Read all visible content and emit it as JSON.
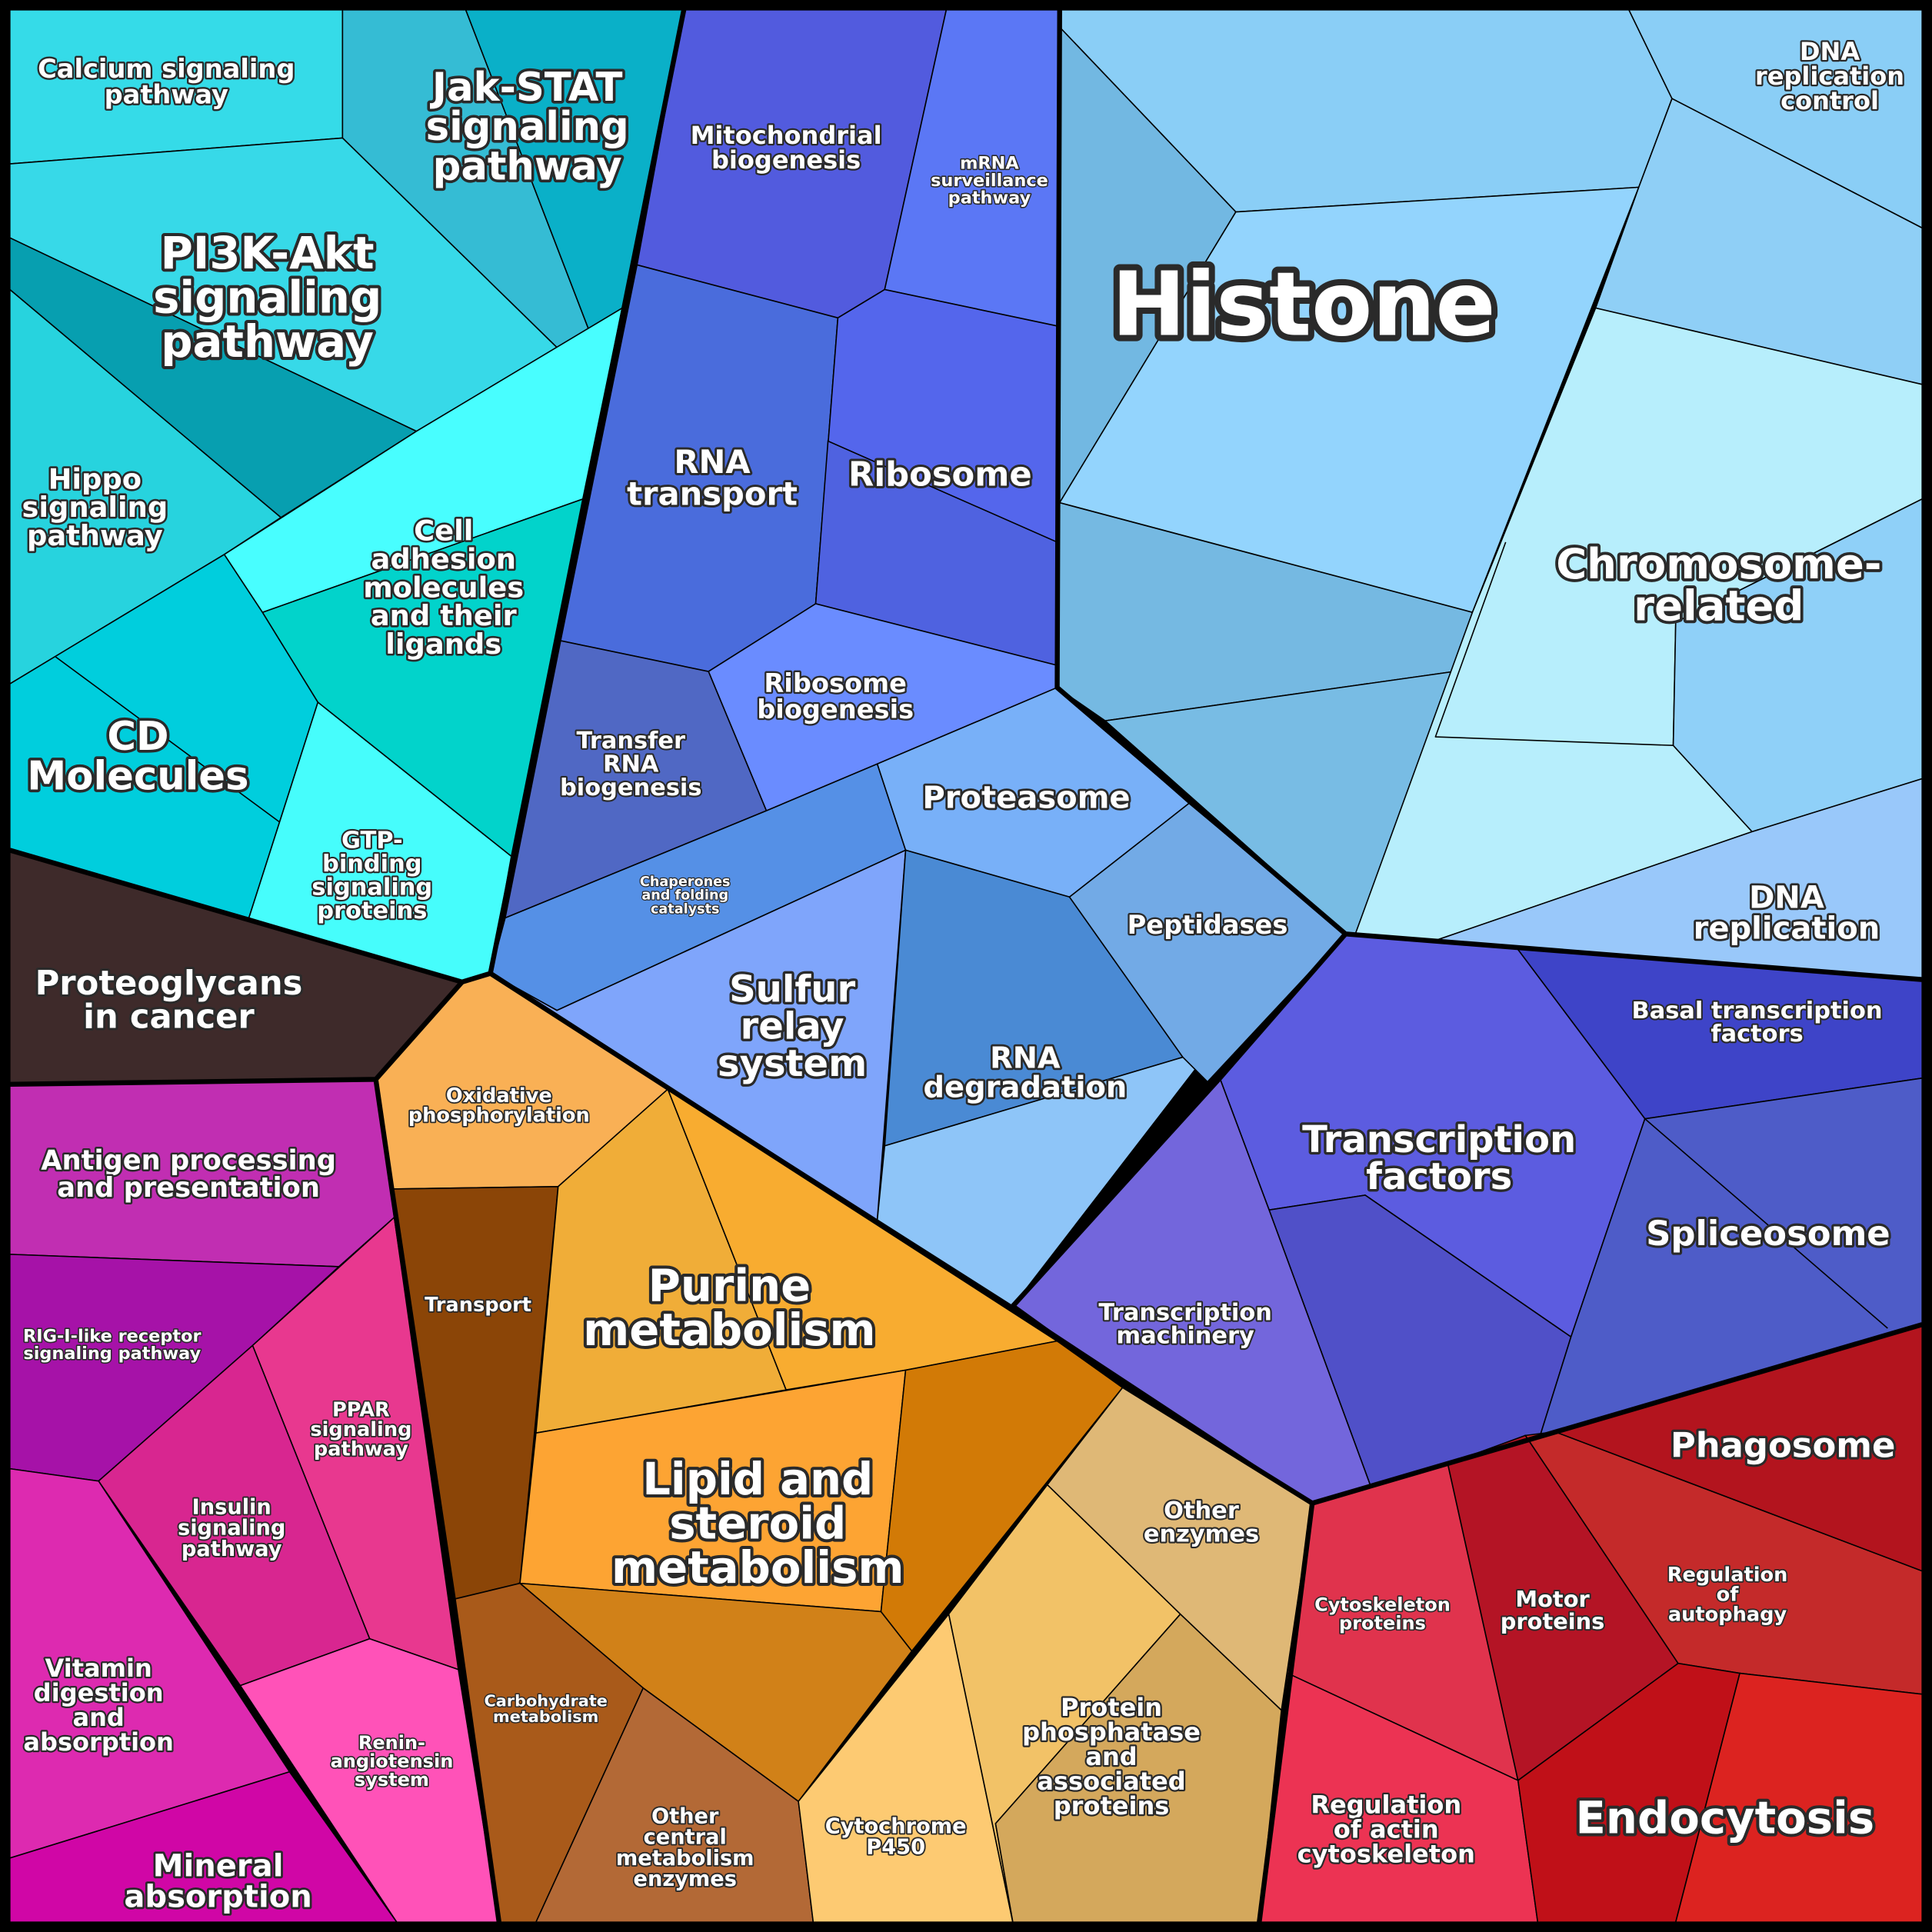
{
  "cells": [
    {
      "label": [
        "Calcium signaling",
        "pathway"
      ]
    },
    {
      "label": [
        "Jak-STAT",
        "signaling",
        "pathway"
      ]
    },
    {
      "label": [
        "PI3K-Akt",
        "signaling",
        "pathway"
      ]
    },
    {
      "label": [
        "Hippo",
        "signaling",
        "pathway"
      ]
    },
    {
      "label": [
        "Cell",
        "adhesion",
        "molecules",
        "and their",
        "ligands"
      ]
    },
    {
      "label": [
        "CD",
        "Molecules"
      ]
    },
    {
      "label": [
        "GTP-",
        "binding",
        "signaling",
        "proteins"
      ]
    },
    {
      "label": [
        "Proteoglycans",
        "in cancer"
      ]
    },
    {
      "label": [
        "Mitochondrial",
        "biogenesis"
      ]
    },
    {
      "label": [
        "mRNA",
        "surveillance",
        "pathway"
      ]
    },
    {
      "label": [
        "RNA",
        "transport"
      ]
    },
    {
      "label": [
        "Ribosome"
      ]
    },
    {
      "label": [
        "Ribosome",
        "biogenesis"
      ]
    },
    {
      "label": [
        "Transfer",
        "RNA",
        "biogenesis"
      ]
    },
    {
      "label": [
        "Chaperones",
        "and folding",
        "catalysts"
      ]
    },
    {
      "label": [
        "Proteasome"
      ]
    },
    {
      "label": [
        "Sulfur",
        "relay",
        "system"
      ]
    },
    {
      "label": [
        "RNA",
        "degradation"
      ]
    },
    {
      "label": [
        "Peptidases"
      ]
    },
    {
      "label": [
        "Histone"
      ]
    },
    {
      "label": [
        "DNA",
        "replication",
        "control"
      ]
    },
    {
      "label": [
        "Chromosome-",
        "related"
      ]
    },
    {
      "label": [
        "DNA",
        "replication"
      ]
    },
    {
      "label": [
        "Basal transcription",
        "factors"
      ]
    },
    {
      "label": [
        "Transcription",
        "factors"
      ]
    },
    {
      "label": [
        "Spliceosome"
      ]
    },
    {
      "label": [
        "Transcription",
        "machinery"
      ]
    },
    {
      "label": [
        "Cytoskeleton",
        "proteins"
      ]
    },
    {
      "label": [
        "Regulation",
        "of actin",
        "cytoskeleton"
      ]
    },
    {
      "label": [
        "Motor",
        "proteins"
      ]
    },
    {
      "label": [
        "Regulation",
        "of",
        "autophagy"
      ]
    },
    {
      "label": [
        "Phagosome"
      ]
    },
    {
      "label": [
        "Endocytosis"
      ]
    },
    {
      "label": [
        "Oxidative",
        "phosphorylation"
      ]
    },
    {
      "label": [
        "Transport"
      ]
    },
    {
      "label": [
        "Purine",
        "metabolism"
      ]
    },
    {
      "label": [
        "Lipid and",
        "steroid",
        "metabolism"
      ]
    },
    {
      "label": [
        "Carbohydrate",
        "metabolism"
      ]
    },
    {
      "label": [
        "Other",
        "central",
        "metabolism",
        "enzymes"
      ]
    },
    {
      "label": [
        "Cytochrome",
        "P450"
      ]
    },
    {
      "label": [
        "Protein",
        "phosphatase",
        "and",
        "associated",
        "proteins"
      ]
    },
    {
      "label": [
        "Other",
        "enzymes"
      ]
    },
    {
      "label": [
        "Antigen processing",
        "and presentation"
      ]
    },
    {
      "label": [
        "RIG-I-like receptor",
        "signaling pathway"
      ]
    },
    {
      "label": [
        "PPAR",
        "signaling",
        "pathway"
      ]
    },
    {
      "label": [
        "Insulin",
        "signaling",
        "pathway"
      ]
    },
    {
      "label": [
        "Vitamin",
        "digestion",
        "and",
        "absorption"
      ]
    },
    {
      "label": [
        "Renin-",
        "angiotensin",
        "system"
      ]
    },
    {
      "label": [
        "Mineral",
        "absorption"
      ]
    }
  ]
}
